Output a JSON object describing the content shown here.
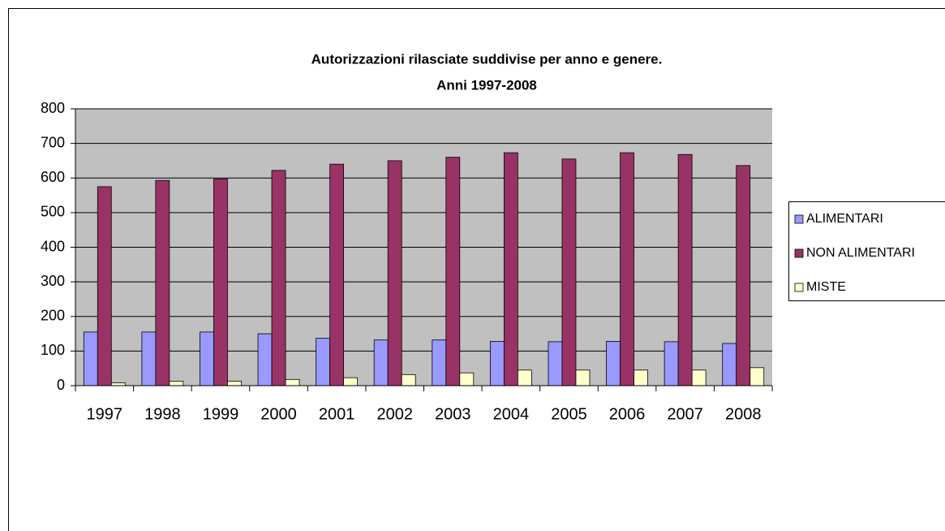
{
  "chart_data": {
    "type": "bar",
    "title": [
      "Autorizzazioni rilasciate suddivise per anno e genere.",
      "Anni 1997-2008"
    ],
    "categories": [
      "1997",
      "1998",
      "1999",
      "2000",
      "2001",
      "2002",
      "2003",
      "2004",
      "2005",
      "2006",
      "2007",
      "2008"
    ],
    "series": [
      {
        "name": "ALIMENTARI",
        "color": "#9999ff",
        "values": [
          155,
          155,
          155,
          150,
          137,
          132,
          132,
          128,
          127,
          128,
          127,
          122
        ]
      },
      {
        "name": "NON ALIMENTARI",
        "color": "#993366",
        "values": [
          575,
          593,
          597,
          622,
          640,
          650,
          660,
          673,
          655,
          673,
          668,
          636
        ]
      },
      {
        "name": "MISTE",
        "color": "#ffffcc",
        "values": [
          8,
          13,
          13,
          18,
          23,
          32,
          37,
          45,
          45,
          45,
          45,
          52
        ]
      }
    ],
    "ylim": [
      0,
      800
    ],
    "yticks": [
      0,
      100,
      200,
      300,
      400,
      500,
      600,
      700,
      800
    ],
    "grid": true,
    "legend": "right"
  }
}
